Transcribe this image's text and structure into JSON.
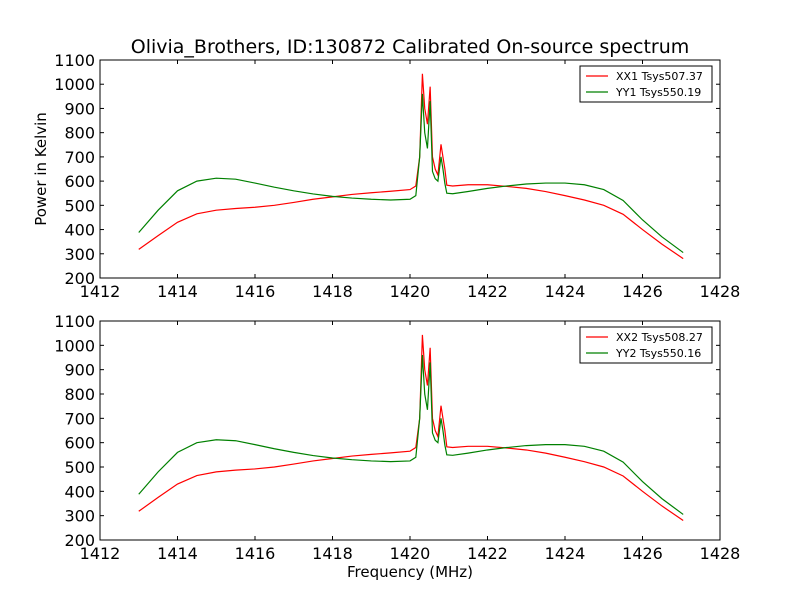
{
  "chart_data": [
    {
      "type": "line",
      "title": "Olivia_Brothers, ID:130872 Calibrated On-source spectrum",
      "xlabel": "",
      "ylabel": "Power in Kelvin",
      "xlim": [
        1412,
        1428
      ],
      "ylim": [
        200,
        1100
      ],
      "xticks": [
        1412,
        1414,
        1416,
        1418,
        1420,
        1422,
        1424,
        1426,
        1428
      ],
      "yticks": [
        200,
        300,
        400,
        500,
        600,
        700,
        800,
        900,
        1000,
        1100
      ],
      "legend_position": "top-right",
      "grid": false,
      "series": [
        {
          "name": "XX1 Tsys507.37",
          "color": "#ff0000",
          "x": [
            1413,
            1413.5,
            1414,
            1414.5,
            1415,
            1415.5,
            1416,
            1416.5,
            1417,
            1417.5,
            1418,
            1418.5,
            1419,
            1419.5,
            1420,
            1420.15,
            1420.25,
            1420.32,
            1420.38,
            1420.45,
            1420.52,
            1420.58,
            1420.65,
            1420.72,
            1420.8,
            1420.85,
            1420.9,
            1420.95,
            1421.1,
            1421.5,
            1422,
            1422.5,
            1423,
            1423.5,
            1424,
            1424.5,
            1425,
            1425.5,
            1426,
            1426.5,
            1427.05
          ],
          "y": [
            318,
            375,
            430,
            465,
            480,
            487,
            492,
            500,
            512,
            525,
            535,
            545,
            552,
            558,
            565,
            580,
            700,
            1043,
            900,
            835,
            990,
            700,
            650,
            625,
            752,
            700,
            650,
            583,
            580,
            585,
            585,
            578,
            570,
            557,
            540,
            522,
            500,
            463,
            400,
            340,
            280
          ]
        },
        {
          "name": "YY1 Tsys550.19",
          "color": "#008000",
          "x": [
            1413,
            1413.5,
            1414,
            1414.5,
            1415,
            1415.5,
            1416,
            1416.5,
            1417,
            1417.5,
            1418,
            1418.5,
            1419,
            1419.5,
            1420,
            1420.15,
            1420.25,
            1420.32,
            1420.38,
            1420.45,
            1420.52,
            1420.58,
            1420.65,
            1420.72,
            1420.8,
            1420.85,
            1420.9,
            1420.95,
            1421.1,
            1421.5,
            1422,
            1422.5,
            1423,
            1423.5,
            1424,
            1424.5,
            1425,
            1425.5,
            1426,
            1426.5,
            1427.05
          ],
          "y": [
            388,
            480,
            560,
            600,
            612,
            608,
            592,
            575,
            560,
            547,
            537,
            530,
            525,
            522,
            525,
            540,
            700,
            960,
            800,
            735,
            930,
            640,
            610,
            600,
            700,
            650,
            590,
            550,
            548,
            557,
            570,
            580,
            588,
            592,
            592,
            585,
            565,
            520,
            440,
            370,
            305
          ]
        }
      ]
    },
    {
      "type": "line",
      "title": "",
      "xlabel": "Frequency (MHz)",
      "ylabel": "",
      "xlim": [
        1412,
        1428
      ],
      "ylim": [
        200,
        1100
      ],
      "xticks": [
        1412,
        1414,
        1416,
        1418,
        1420,
        1422,
        1424,
        1426,
        1428
      ],
      "yticks": [
        200,
        300,
        400,
        500,
        600,
        700,
        800,
        900,
        1000,
        1100
      ],
      "legend_position": "top-right",
      "grid": false,
      "series": [
        {
          "name": "XX2 Tsys508.27",
          "color": "#ff0000",
          "x": [
            1413,
            1413.5,
            1414,
            1414.5,
            1415,
            1415.5,
            1416,
            1416.5,
            1417,
            1417.5,
            1418,
            1418.5,
            1419,
            1419.5,
            1420,
            1420.15,
            1420.25,
            1420.32,
            1420.38,
            1420.45,
            1420.52,
            1420.58,
            1420.65,
            1420.72,
            1420.8,
            1420.85,
            1420.9,
            1420.95,
            1421.1,
            1421.5,
            1422,
            1422.5,
            1423,
            1423.5,
            1424,
            1424.5,
            1425,
            1425.5,
            1426,
            1426.5,
            1427.05
          ],
          "y": [
            318,
            375,
            430,
            465,
            480,
            487,
            492,
            500,
            512,
            525,
            535,
            545,
            552,
            558,
            565,
            580,
            700,
            1043,
            900,
            835,
            990,
            700,
            650,
            625,
            752,
            700,
            650,
            583,
            580,
            585,
            585,
            578,
            570,
            557,
            540,
            522,
            500,
            463,
            400,
            340,
            280
          ]
        },
        {
          "name": "YY2 Tsys550.16",
          "color": "#008000",
          "x": [
            1413,
            1413.5,
            1414,
            1414.5,
            1415,
            1415.5,
            1416,
            1416.5,
            1417,
            1417.5,
            1418,
            1418.5,
            1419,
            1419.5,
            1420,
            1420.15,
            1420.25,
            1420.32,
            1420.38,
            1420.45,
            1420.52,
            1420.58,
            1420.65,
            1420.72,
            1420.8,
            1420.85,
            1420.9,
            1420.95,
            1421.1,
            1421.5,
            1422,
            1422.5,
            1423,
            1423.5,
            1424,
            1424.5,
            1425,
            1425.5,
            1426,
            1426.5,
            1427.05
          ],
          "y": [
            388,
            480,
            560,
            600,
            612,
            608,
            592,
            575,
            560,
            547,
            537,
            530,
            525,
            522,
            525,
            540,
            700,
            960,
            800,
            735,
            930,
            640,
            610,
            600,
            700,
            650,
            590,
            550,
            548,
            557,
            570,
            580,
            588,
            592,
            592,
            585,
            565,
            520,
            440,
            370,
            305
          ]
        }
      ]
    }
  ]
}
